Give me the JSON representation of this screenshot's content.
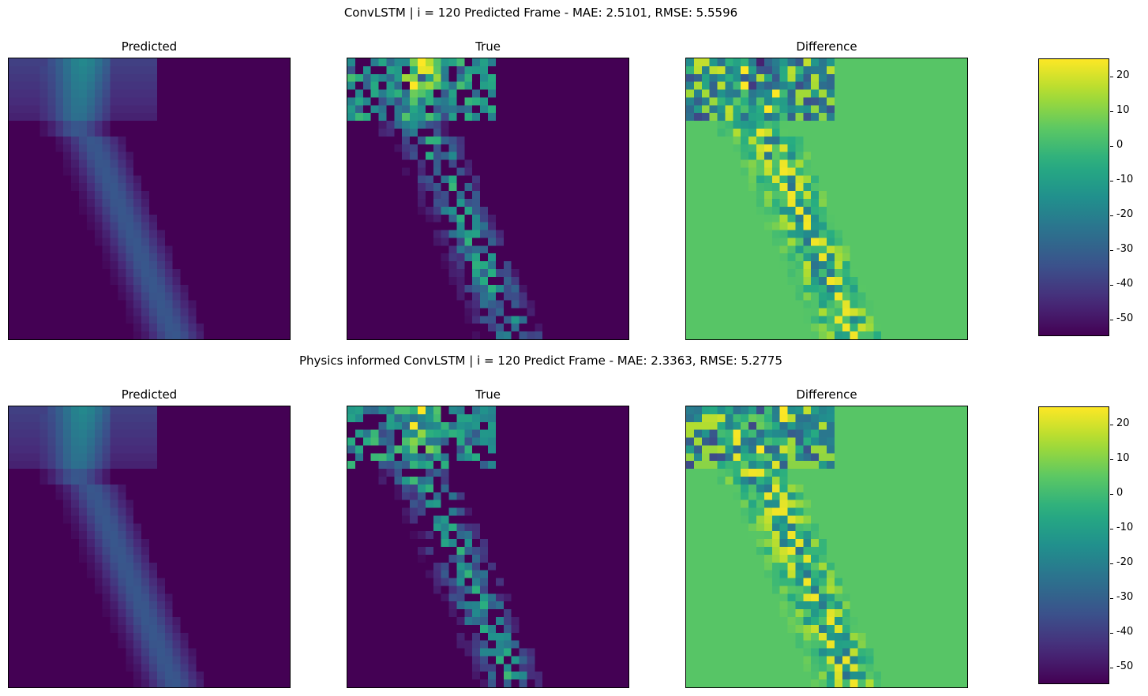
{
  "chart_data": [
    {
      "type": "heatmap",
      "title": "ConvLSTM | i = 120 Predicted Frame - MAE: 2.5101, RMSE: 5.5596",
      "panels": [
        "Predicted",
        "True",
        "Difference"
      ],
      "colormap": "viridis",
      "color_range": [
        -55,
        25
      ],
      "colorbar_ticks": [
        20,
        10,
        0,
        -10,
        -20,
        -30,
        -40,
        -50
      ],
      "metrics": {
        "MAE": 2.5101,
        "RMSE": 5.5596
      }
    },
    {
      "type": "heatmap",
      "title": "Physics informed ConvLSTM | i = 120 Predict Frame - MAE: 2.3363, RMSE: 5.2775",
      "panels": [
        "Predicted",
        "True",
        "Difference"
      ],
      "colormap": "viridis",
      "color_range": [
        -55,
        25
      ],
      "colorbar_ticks": [
        20,
        10,
        0,
        -10,
        -20,
        -30,
        -40,
        -50
      ],
      "metrics": {
        "MAE": 2.3363,
        "RMSE": 5.2775
      }
    }
  ]
}
